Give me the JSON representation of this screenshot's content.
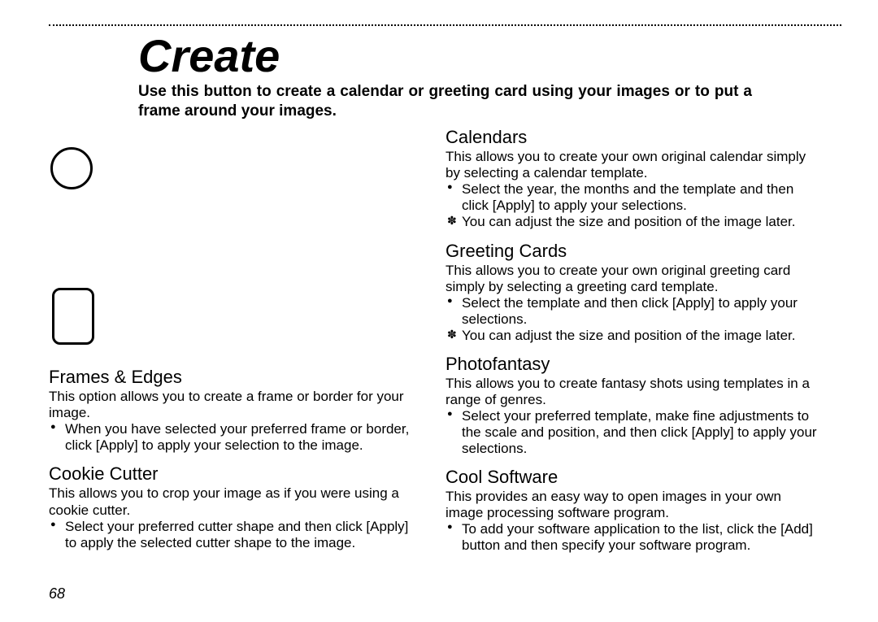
{
  "page_number": "68",
  "title": "Create",
  "intro": "Use this button to create a calendar or greeting card using your images or to put a frame around your images.",
  "left": {
    "frames": {
      "title": "Frames & Edges",
      "desc": "This option allows you to create a frame or border for your image.",
      "bullet": "When you have selected your preferred frame or border, click [Apply] to apply your selection to the image."
    },
    "cookie": {
      "title": "Cookie Cutter",
      "desc": "This allows you to crop your image as if you were using a cookie cutter.",
      "bullet": "Select your preferred cutter shape and then click [Apply] to apply the selected cutter shape to the image."
    }
  },
  "right": {
    "calendars": {
      "title": "Calendars",
      "desc": "This allows you to create your own original calendar simply by selecting a calendar template.",
      "bullet": "Select the year, the months and the template and then click [Apply] to apply your selections.",
      "note": "You can adjust the size and position of the image later."
    },
    "greeting": {
      "title": "Greeting Cards",
      "desc": "This allows you to create your own original greeting card simply by selecting a greeting card template.",
      "bullet": "Select the template and then click [Apply] to apply your selections.",
      "note": "You can adjust the size and position of the image later."
    },
    "photofantasy": {
      "title": "Photofantasy",
      "desc": "This allows you to create fantasy shots using templates in a range of genres.",
      "bullet": "Select your preferred template, make fine adjustments to the scale and position, and then click [Apply] to apply your selections."
    },
    "cool": {
      "title": "Cool Software",
      "desc": "This provides an easy way to open images in your own image processing software program.",
      "bullet": "To add your software application to the list, click the [Add] button and then specify your software program."
    }
  }
}
